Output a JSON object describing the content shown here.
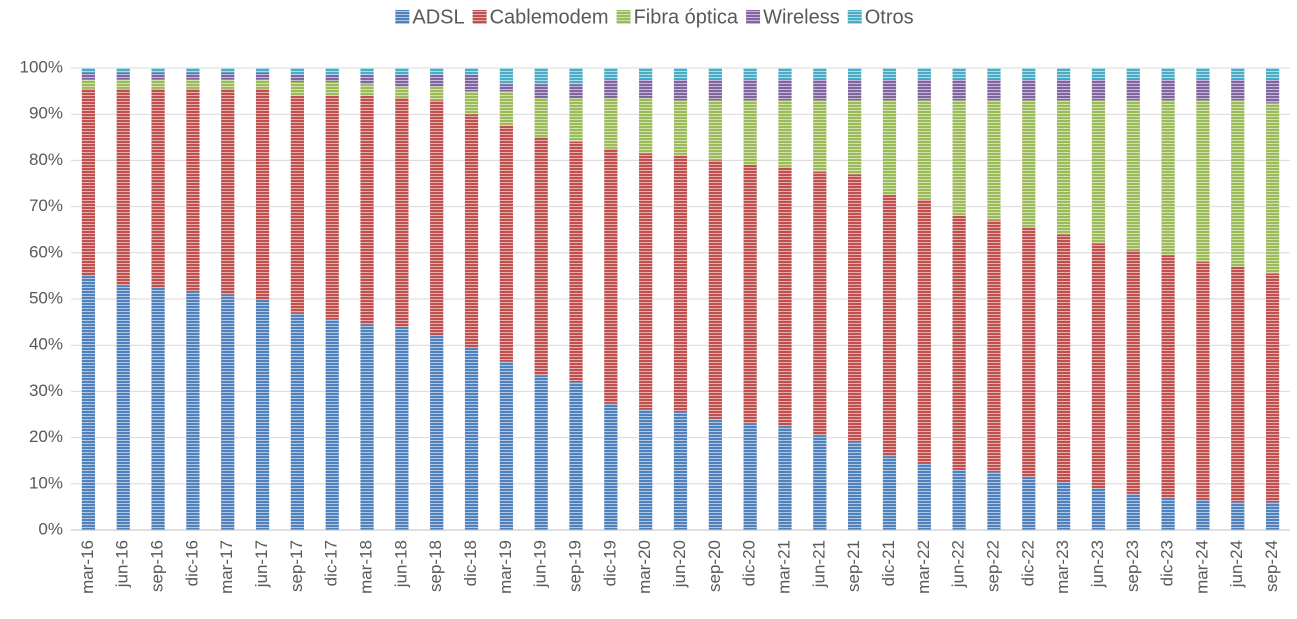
{
  "chart_data": {
    "type": "stacked_bar",
    "categories": [
      "mar-16",
      "jun-16",
      "sep-16",
      "dic-16",
      "mar-17",
      "jun-17",
      "sep-17",
      "dic-17",
      "mar-18",
      "jun-18",
      "sep-18",
      "dic-18",
      "mar-19",
      "jun-19",
      "sep-19",
      "dic-19",
      "mar-20",
      "jun-20",
      "sep-20",
      "dic-20",
      "mar-21",
      "jun-21",
      "sep-21",
      "dic-21",
      "mar-22",
      "jun-22",
      "sep-22",
      "dic-22",
      "mar-23",
      "jun-23",
      "sep-23",
      "dic-23",
      "mar-24",
      "jun-24",
      "sep-24"
    ],
    "series": [
      {
        "name": "ADSL",
        "color": "#4f81bd",
        "values": [
          55,
          53,
          52.5,
          51.5,
          51,
          50,
          47,
          45.5,
          44.5,
          44,
          42,
          39.5,
          36.5,
          33.5,
          32,
          27.5,
          26,
          25.5,
          24,
          23,
          22.5,
          20.5,
          19,
          16,
          14.5,
          13,
          12.5,
          11.5,
          10.5,
          9,
          8,
          7,
          6.5,
          6,
          6
        ]
      },
      {
        "name": "Cablemodem",
        "color": "#c0504d",
        "values": [
          40.5,
          42.5,
          43,
          44,
          44.5,
          45.5,
          47,
          48.5,
          49.5,
          49.5,
          51,
          50.5,
          51,
          51.5,
          52,
          55,
          55.5,
          55.5,
          56,
          56,
          56,
          57,
          58,
          56.5,
          57,
          55,
          54.5,
          54,
          53.5,
          53,
          52.5,
          52.5,
          51.5,
          51,
          49.5
        ]
      },
      {
        "name": "Fibra óptica",
        "color": "#9bbb59",
        "values": [
          2,
          2,
          2,
          2,
          2,
          2,
          3,
          3,
          2.5,
          2.5,
          3,
          5,
          7.5,
          8.5,
          9.5,
          11,
          12,
          12,
          13,
          14,
          14.5,
          15.5,
          16,
          20.5,
          21.5,
          25,
          26,
          27.5,
          29,
          31,
          32.5,
          33.5,
          35,
          36,
          37
        ]
      },
      {
        "name": "Wireless",
        "color": "#8064a2",
        "values": [
          1.5,
          1.5,
          1.5,
          1.5,
          1.5,
          1.5,
          1.5,
          1.5,
          2,
          2.5,
          2.5,
          3.5,
          1.5,
          3,
          3,
          4,
          4,
          4.5,
          4.5,
          4.5,
          4.5,
          4.5,
          4.5,
          4.5,
          4.5,
          4.5,
          4.5,
          4.5,
          4.5,
          4.5,
          4.5,
          4.5,
          4.5,
          4.5,
          5
        ]
      },
      {
        "name": "Otros",
        "color": "#4bacc6",
        "values": [
          1,
          1,
          1,
          1,
          1,
          1,
          1.5,
          1.5,
          1.5,
          1.5,
          1.5,
          1.5,
          3.5,
          3.5,
          3.5,
          2.5,
          2.5,
          2.5,
          2.5,
          2.5,
          2.5,
          2.5,
          2.5,
          2.5,
          2.5,
          2.5,
          2.5,
          2.5,
          2.5,
          2.5,
          2.5,
          2.5,
          2.5,
          2.5,
          2.5
        ]
      }
    ],
    "ylim": [
      0,
      100
    ],
    "yticks": [
      {
        "value": 0,
        "label": "0%"
      },
      {
        "value": 10,
        "label": "10%"
      },
      {
        "value": 20,
        "label": "20%"
      },
      {
        "value": 30,
        "label": "30%"
      },
      {
        "value": 40,
        "label": "40%"
      },
      {
        "value": 50,
        "label": "50%"
      },
      {
        "value": 60,
        "label": "60%"
      },
      {
        "value": 70,
        "label": "70%"
      },
      {
        "value": 80,
        "label": "80%"
      },
      {
        "value": 90,
        "label": "90%"
      },
      {
        "value": 100,
        "label": "100%"
      }
    ],
    "grid": true,
    "legend": "top"
  }
}
